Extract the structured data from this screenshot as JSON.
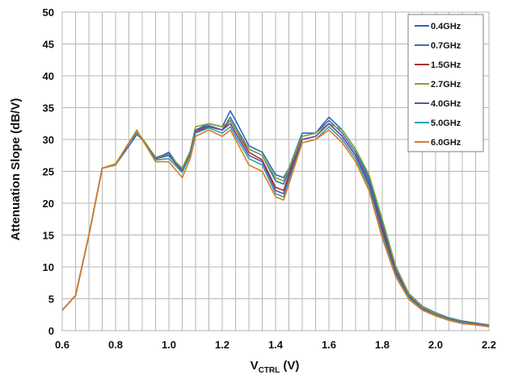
{
  "chart_data": {
    "type": "line",
    "title": "",
    "xlabel": {
      "main": "V",
      "sub": "CTRL",
      "unit": " (V)"
    },
    "ylabel": "Attenuation Slope  (dB/V)",
    "xlim": [
      0.6,
      2.2
    ],
    "ylim": [
      0,
      50
    ],
    "x_ticks": [
      "0.6",
      "0.8",
      "1.0",
      "1.2",
      "1.4",
      "1.6",
      "1.8",
      "2.0",
      "2.2"
    ],
    "y_ticks": [
      "0",
      "5",
      "10",
      "15",
      "20",
      "25",
      "30",
      "35",
      "40",
      "45",
      "50"
    ],
    "grid": true,
    "legend_position": "top-right",
    "x": [
      0.6,
      0.65,
      0.7,
      0.75,
      0.8,
      0.85,
      0.88,
      0.9,
      0.95,
      1.0,
      1.05,
      1.08,
      1.1,
      1.15,
      1.2,
      1.23,
      1.25,
      1.3,
      1.35,
      1.4,
      1.43,
      1.45,
      1.5,
      1.55,
      1.6,
      1.65,
      1.7,
      1.75,
      1.8,
      1.85,
      1.9,
      1.95,
      2.0,
      2.05,
      2.1,
      2.15,
      2.2
    ],
    "series": [
      {
        "name": "0.4GHz",
        "color": "#2a66b8",
        "values": [
          3.2,
          5.5,
          15,
          25.5,
          26,
          29,
          30.8,
          30,
          27,
          28,
          25,
          28,
          31.5,
          32.5,
          32,
          34.5,
          33,
          29,
          28,
          24.5,
          24,
          25.5,
          31,
          31,
          33.5,
          31.5,
          28.5,
          24,
          17,
          10,
          5.8,
          3.8,
          2.8,
          2.0,
          1.5,
          1.2,
          0.9
        ]
      },
      {
        "name": "0.7GHz",
        "color": "#3b6fae",
        "values": [
          3.2,
          5.5,
          15,
          25.5,
          26,
          29.5,
          31,
          30,
          27.2,
          27.8,
          25.2,
          28,
          31.5,
          32.2,
          31.5,
          33.5,
          32,
          28.5,
          27.5,
          23.5,
          23,
          25,
          30.5,
          31,
          33,
          31,
          28,
          23.5,
          16.5,
          9.5,
          5.6,
          3.6,
          2.7,
          1.9,
          1.4,
          1.1,
          0.9
        ]
      },
      {
        "name": "1.5GHz",
        "color": "#a83232",
        "values": [
          3.2,
          5.5,
          15,
          25.5,
          26,
          29.5,
          31,
          30,
          27,
          27.5,
          25,
          27.8,
          31.2,
          32,
          31.5,
          33,
          31.5,
          28,
          26.8,
          22.5,
          22,
          24.5,
          30,
          30.5,
          32.5,
          30.5,
          27.5,
          23,
          16,
          9.2,
          5.4,
          3.5,
          2.6,
          1.8,
          1.3,
          1.0,
          0.8
        ]
      },
      {
        "name": "2.7GHz",
        "color": "#7ea63a",
        "values": [
          3.2,
          5.5,
          15,
          25.5,
          26.2,
          29.5,
          31.2,
          30.2,
          27.2,
          27.5,
          25.5,
          28.2,
          32,
          32.5,
          32,
          33,
          31.5,
          28.5,
          27.5,
          24,
          23.5,
          25.5,
          30.5,
          31,
          32.5,
          31.5,
          28.5,
          24.5,
          17.5,
          10.2,
          5.7,
          3.7,
          2.7,
          1.9,
          1.4,
          1.1,
          0.9
        ]
      },
      {
        "name": "4.0GHz",
        "color": "#6a4ca0",
        "values": [
          3.2,
          5.5,
          15,
          25.5,
          26,
          29.5,
          31,
          30,
          27,
          27.5,
          25,
          27.8,
          31.5,
          32,
          31.5,
          32.5,
          31,
          27.5,
          26.5,
          22,
          21.5,
          24,
          30,
          30.5,
          32.5,
          30.5,
          27.5,
          23,
          15.5,
          9,
          5.3,
          3.4,
          2.5,
          1.8,
          1.3,
          1.0,
          0.8
        ]
      },
      {
        "name": "5.0GHz",
        "color": "#2aa0b2",
        "values": [
          3.2,
          5.5,
          15,
          25.5,
          26,
          29.5,
          31,
          30,
          26.8,
          27,
          24.8,
          27.5,
          31,
          31.8,
          31,
          32,
          30.5,
          27,
          26,
          21.5,
          21,
          23.5,
          29.5,
          30,
          32,
          30,
          27,
          22.5,
          15,
          8.8,
          5.1,
          3.3,
          2.4,
          1.7,
          1.2,
          0.9,
          0.7
        ]
      },
      {
        "name": "6.0GHz",
        "color": "#e07a1f",
        "values": [
          3.2,
          5.5,
          15,
          25.5,
          26,
          29.5,
          31.5,
          30,
          26.5,
          26.5,
          24,
          27,
          30.5,
          31.5,
          30.5,
          31.5,
          30,
          26,
          25,
          21,
          20.5,
          23,
          29.5,
          30,
          31.5,
          29.5,
          26.5,
          22,
          14.5,
          8.5,
          4.9,
          3.2,
          2.3,
          1.6,
          1.1,
          0.9,
          0.6
        ]
      }
    ]
  }
}
